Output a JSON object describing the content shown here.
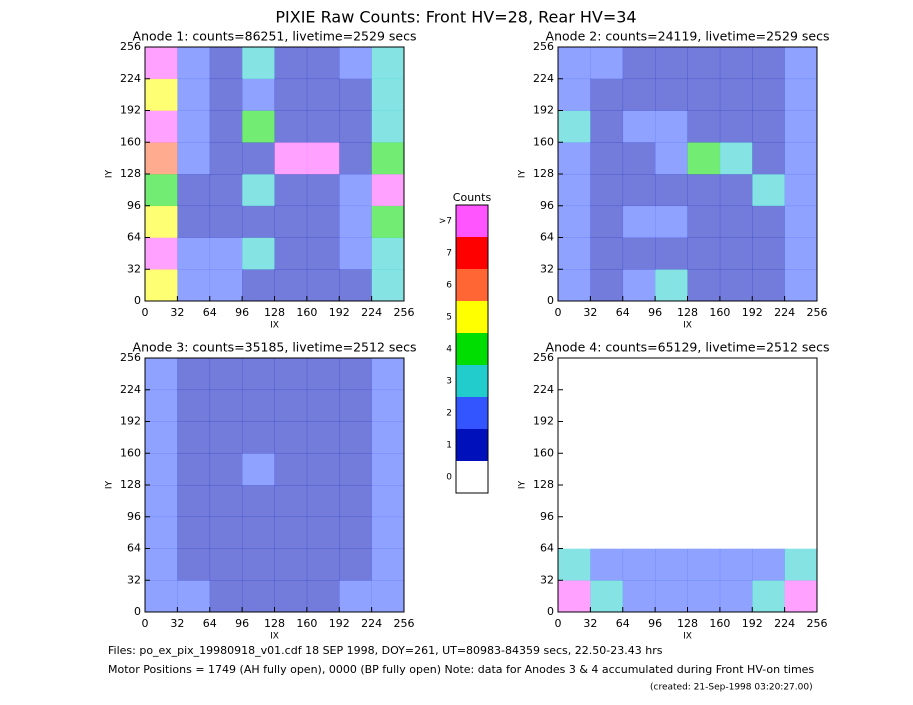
{
  "title": "PIXIE Raw Counts:  Front HV=28, Rear HV=34",
  "colorbar": {
    "title": "Counts",
    "ticks": [
      0,
      1,
      2,
      3,
      4,
      5,
      6,
      7,
      {
        "value": 8,
        "label": ">7"
      }
    ],
    "colors": [
      "#ffffff",
      "#0011bb",
      "#3355ff",
      "#22cccc",
      "#00dd00",
      "#ffff00",
      "#ff6633",
      "#ff0000",
      "#ff55ff"
    ]
  },
  "footer": {
    "files": "Files: po_ex_pix_19980918_v01.cdf    18 SEP 1998, DOY=261, UT=80983-84359 secs, 22.50-23.43 hrs",
    "motor": "Motor Positions = 1749 (AH fully open), 0000 (BP fully open)    Note: data for Anodes 3 & 4 accumulated during Front HV-on times",
    "created": "(created: 21-Sep-1998 03:20:27.00)"
  },
  "chart_data": [
    {
      "type": "heatmap",
      "title": "Anode 1: counts=86251, livetime=2529 secs",
      "xlabel": "IX",
      "ylabel": "IY",
      "xlim": [
        0,
        256
      ],
      "ylim": [
        0,
        256
      ],
      "xticks": [
        0,
        32,
        64,
        96,
        128,
        160,
        192,
        224,
        256
      ],
      "yticks": [
        0,
        32,
        64,
        96,
        128,
        160,
        192,
        224,
        256
      ],
      "values": [
        [
          5,
          2,
          2,
          1,
          1,
          1,
          1,
          3
        ],
        [
          8,
          2,
          2,
          3,
          1,
          1,
          2,
          3
        ],
        [
          5,
          1,
          1,
          1,
          1,
          1,
          2,
          4
        ],
        [
          4,
          1,
          1,
          3,
          1,
          1,
          2,
          8
        ],
        [
          6,
          2,
          1,
          1,
          8,
          8,
          1,
          4
        ],
        [
          8,
          2,
          1,
          4,
          1,
          1,
          1,
          3
        ],
        [
          5,
          2,
          1,
          2,
          1,
          1,
          1,
          3
        ],
        [
          8,
          2,
          1,
          3,
          1,
          1,
          2,
          3
        ]
      ]
    },
    {
      "type": "heatmap",
      "title": "Anode 2: counts=24119, livetime=2529 secs",
      "xlabel": "IX",
      "ylabel": "IY",
      "xlim": [
        0,
        256
      ],
      "ylim": [
        0,
        256
      ],
      "xticks": [
        0,
        32,
        64,
        96,
        128,
        160,
        192,
        224,
        256
      ],
      "yticks": [
        0,
        32,
        64,
        96,
        128,
        160,
        192,
        224,
        256
      ],
      "values": [
        [
          2,
          1,
          2,
          3,
          1,
          1,
          1,
          2
        ],
        [
          2,
          1,
          1,
          1,
          1,
          1,
          1,
          2
        ],
        [
          2,
          1,
          2,
          2,
          1,
          1,
          1,
          2
        ],
        [
          2,
          1,
          1,
          1,
          1,
          1,
          3,
          2
        ],
        [
          2,
          1,
          1,
          2,
          4,
          3,
          1,
          2
        ],
        [
          3,
          1,
          2,
          2,
          1,
          1,
          1,
          2
        ],
        [
          2,
          1,
          1,
          1,
          1,
          1,
          1,
          2
        ],
        [
          2,
          2,
          1,
          1,
          1,
          1,
          1,
          2
        ]
      ]
    },
    {
      "type": "heatmap",
      "title": "Anode 3: counts=35185, livetime=2512 secs",
      "xlabel": "IX",
      "ylabel": "IY",
      "xlim": [
        0,
        256
      ],
      "ylim": [
        0,
        256
      ],
      "xticks": [
        0,
        32,
        64,
        96,
        128,
        160,
        192,
        224,
        256
      ],
      "yticks": [
        0,
        32,
        64,
        96,
        128,
        160,
        192,
        224,
        256
      ],
      "values": [
        [
          2,
          2,
          1,
          1,
          1,
          1,
          2,
          2
        ],
        [
          2,
          1,
          1,
          1,
          1,
          1,
          1,
          2
        ],
        [
          2,
          1,
          1,
          1,
          1,
          1,
          1,
          2
        ],
        [
          2,
          1,
          1,
          1,
          1,
          1,
          1,
          2
        ],
        [
          2,
          1,
          1,
          2,
          1,
          1,
          1,
          2
        ],
        [
          2,
          1,
          1,
          1,
          1,
          1,
          1,
          2
        ],
        [
          2,
          1,
          1,
          1,
          1,
          1,
          1,
          2
        ],
        [
          2,
          1,
          1,
          1,
          1,
          1,
          1,
          2
        ]
      ]
    },
    {
      "type": "heatmap",
      "title": "Anode 4: counts=65129, livetime=2512 secs",
      "xlabel": "IX",
      "ylabel": "IY",
      "xlim": [
        0,
        256
      ],
      "ylim": [
        0,
        256
      ],
      "xticks": [
        0,
        32,
        64,
        96,
        128,
        160,
        192,
        224,
        256
      ],
      "yticks": [
        0,
        32,
        64,
        96,
        128,
        160,
        192,
        224,
        256
      ],
      "values": [
        [
          8,
          3,
          2,
          2,
          2,
          2,
          3,
          8
        ],
        [
          3,
          2,
          2,
          2,
          2,
          2,
          2,
          3
        ],
        [
          0,
          0,
          0,
          0,
          0,
          0,
          0,
          0
        ],
        [
          0,
          0,
          0,
          0,
          0,
          0,
          0,
          0
        ],
        [
          0,
          0,
          0,
          0,
          0,
          0,
          0,
          0
        ],
        [
          0,
          0,
          0,
          0,
          0,
          0,
          0,
          0
        ],
        [
          0,
          0,
          0,
          0,
          0,
          0,
          0,
          0
        ],
        [
          0,
          0,
          0,
          0,
          0,
          0,
          0,
          0
        ]
      ]
    }
  ]
}
